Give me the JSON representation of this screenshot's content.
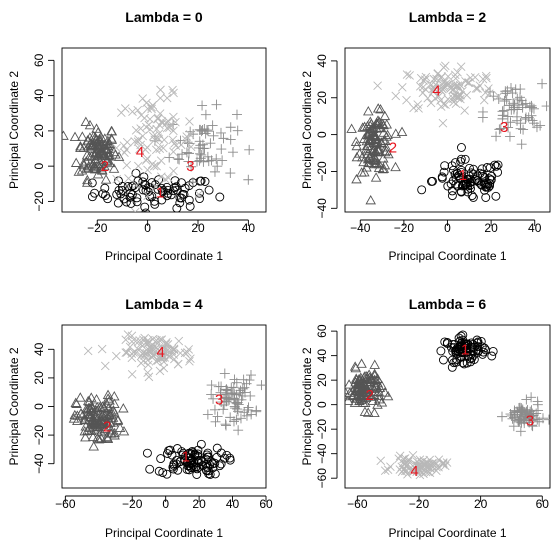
{
  "chart_data": [
    {
      "type": "scatter",
      "title": "Lambda = 0",
      "xlabel": "Principal Coordinate 1",
      "ylabel": "Principal Coordinate 2",
      "xlim": [
        -34,
        47
      ],
      "ylim": [
        -26,
        67
      ],
      "xticks": [
        -20,
        0,
        20,
        40
      ],
      "yticks": [
        -20,
        0,
        20,
        40,
        60
      ],
      "clusters": [
        {
          "name": "1",
          "marker": "circle",
          "color": "#000000",
          "center": [
            3,
            -15
          ],
          "spread": [
            22,
            8
          ],
          "n": 80,
          "label_pos": [
            5,
            -15
          ]
        },
        {
          "name": "2",
          "marker": "triangle",
          "color": "#555555",
          "center": [
            -20,
            8
          ],
          "spread": [
            7,
            14
          ],
          "n": 110,
          "label_pos": [
            -17,
            0
          ]
        },
        {
          "name": "3",
          "marker": "plus",
          "color": "#8c8c8c",
          "center": [
            22,
            12
          ],
          "spread": [
            12,
            18
          ],
          "n": 60,
          "label_pos": [
            17,
            0
          ]
        },
        {
          "name": "4",
          "marker": "cross",
          "color": "#b8b8b8",
          "center": [
            3,
            15
          ],
          "spread": [
            14,
            22
          ],
          "n": 90,
          "label_pos": [
            -3,
            8
          ]
        }
      ]
    },
    {
      "type": "scatter",
      "title": "Lambda = 2",
      "xlabel": "Principal Coordinate 1",
      "ylabel": "Principal Coordinate 2",
      "xlim": [
        -47,
        47
      ],
      "ylim": [
        -42,
        47
      ],
      "xticks": [
        -40,
        -20,
        0,
        20,
        40
      ],
      "yticks": [
        -40,
        -20,
        0,
        20,
        40
      ],
      "clusters": [
        {
          "name": "1",
          "marker": "circle",
          "color": "#000000",
          "center": [
            10,
            -25
          ],
          "spread": [
            15,
            10
          ],
          "n": 90,
          "label_pos": [
            7,
            -22
          ]
        },
        {
          "name": "2",
          "marker": "triangle",
          "color": "#555555",
          "center": [
            -33,
            -5
          ],
          "spread": [
            7,
            14
          ],
          "n": 110,
          "label_pos": [
            -25,
            -7
          ]
        },
        {
          "name": "3",
          "marker": "plus",
          "color": "#8c8c8c",
          "center": [
            30,
            12
          ],
          "spread": [
            12,
            14
          ],
          "n": 60,
          "label_pos": [
            26,
            4
          ]
        },
        {
          "name": "4",
          "marker": "cross",
          "color": "#b8b8b8",
          "center": [
            0,
            25
          ],
          "spread": [
            20,
            12
          ],
          "n": 100,
          "label_pos": [
            -5,
            24
          ]
        }
      ]
    },
    {
      "type": "scatter",
      "title": "Lambda = 4",
      "xlabel": "Principal Coordinate 1",
      "ylabel": "Principal Coordinate 2",
      "xlim": [
        -62,
        60
      ],
      "ylim": [
        -57,
        57
      ],
      "xticks": [
        -60,
        -20,
        0,
        20,
        40,
        60
      ],
      "yticks": [
        -40,
        -20,
        0,
        20,
        40
      ],
      "clusters": [
        {
          "name": "1",
          "marker": "circle",
          "color": "#000000",
          "center": [
            15,
            -38
          ],
          "spread": [
            18,
            9
          ],
          "n": 90,
          "label_pos": [
            12,
            -35
          ]
        },
        {
          "name": "2",
          "marker": "triangle",
          "color": "#555555",
          "center": [
            -40,
            -10
          ],
          "spread": [
            12,
            15
          ],
          "n": 120,
          "label_pos": [
            -35,
            -14
          ]
        },
        {
          "name": "3",
          "marker": "plus",
          "color": "#8c8c8c",
          "center": [
            40,
            5
          ],
          "spread": [
            12,
            15
          ],
          "n": 70,
          "label_pos": [
            32,
            5
          ]
        },
        {
          "name": "4",
          "marker": "cross",
          "color": "#b8b8b8",
          "center": [
            -5,
            38
          ],
          "spread": [
            20,
            10
          ],
          "n": 100,
          "label_pos": [
            -3,
            38
          ]
        }
      ]
    },
    {
      "type": "scatter",
      "title": "Lambda = 6",
      "xlabel": "Principal Coordinate 1",
      "ylabel": "Principal Coordinate 2",
      "xlim": [
        -68,
        65
      ],
      "ylim": [
        -68,
        65
      ],
      "xticks": [
        -60,
        -20,
        20,
        60
      ],
      "yticks": [
        -60,
        -40,
        -20,
        0,
        20,
        40,
        60
      ],
      "clusters": [
        {
          "name": "1",
          "marker": "circle",
          "color": "#000000",
          "center": [
            10,
            45
          ],
          "spread": [
            12,
            9
          ],
          "n": 90,
          "label_pos": [
            10,
            45
          ]
        },
        {
          "name": "2",
          "marker": "triangle",
          "color": "#555555",
          "center": [
            -55,
            12
          ],
          "spread": [
            10,
            14
          ],
          "n": 110,
          "label_pos": [
            -52,
            8
          ]
        },
        {
          "name": "3",
          "marker": "plus",
          "color": "#8c8c8c",
          "center": [
            48,
            -10
          ],
          "spread": [
            10,
            10
          ],
          "n": 70,
          "label_pos": [
            52,
            -13
          ]
        },
        {
          "name": "4",
          "marker": "cross",
          "color": "#b8b8b8",
          "center": [
            -20,
            -50
          ],
          "spread": [
            15,
            6
          ],
          "n": 80,
          "label_pos": [
            -23,
            -54
          ]
        }
      ]
    }
  ]
}
